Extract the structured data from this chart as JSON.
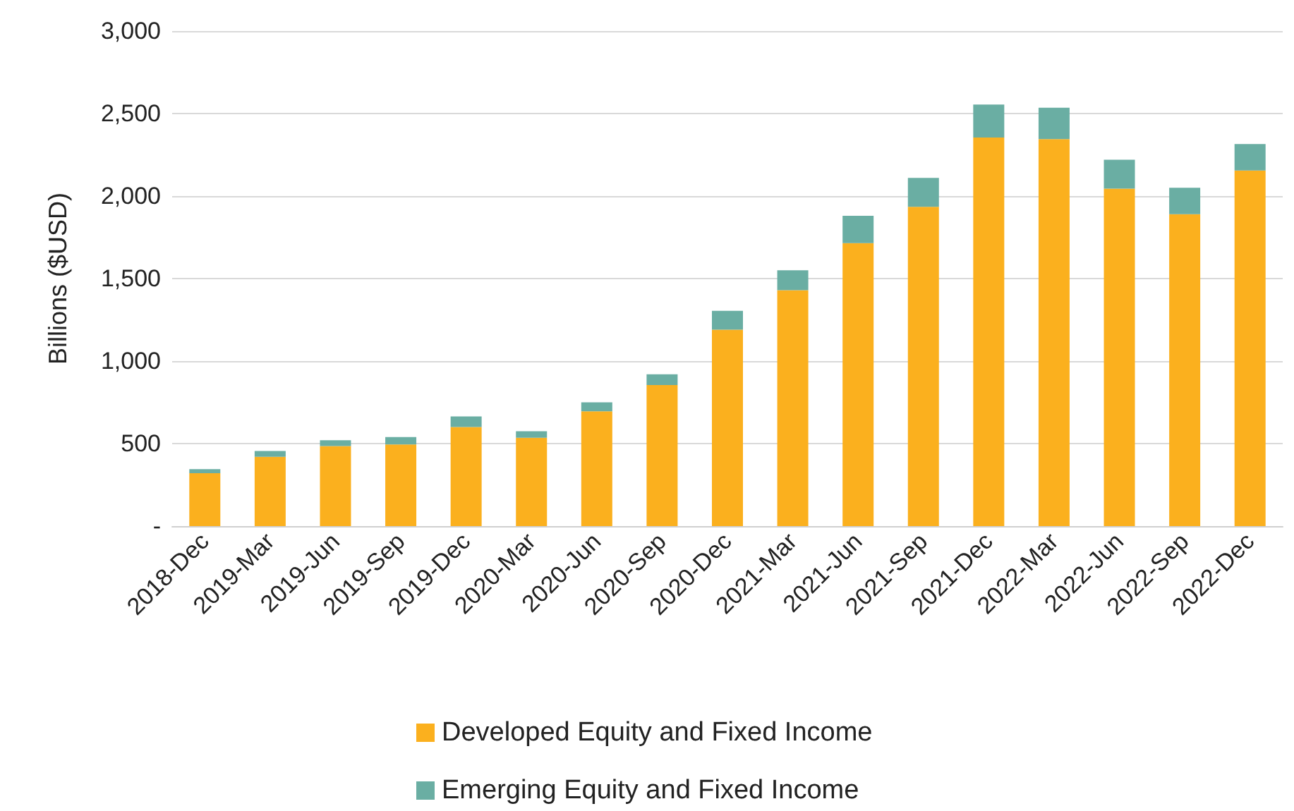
{
  "chart_data": {
    "type": "bar",
    "ylabel": "Billions ($USD)",
    "stacked": true,
    "grid": "y",
    "legend": "bottom",
    "categories": [
      "2018-Dec",
      "2019-Mar",
      "2019-Jun",
      "2019-Sep",
      "2019-Dec",
      "2020-Mar",
      "2020-Jun",
      "2020-Sep",
      "2020-Dec",
      "2021-Mar",
      "2021-Jun",
      "2021-Sep",
      "2021-Dec",
      "2022-Mar",
      "2022-Jun",
      "2022-Sep",
      "2022-Dec"
    ],
    "series": [
      {
        "name": "Developed Equity and Fixed Income",
        "color": "#fbb01e",
        "values": [
          320,
          420,
          485,
          495,
          600,
          535,
          695,
          855,
          1190,
          1430,
          1715,
          1935,
          2355,
          2345,
          2045,
          1890,
          2155
        ]
      },
      {
        "name": "Emerging Equity and Fixed Income",
        "color": "#6aaea3",
        "values": [
          25,
          35,
          35,
          45,
          65,
          40,
          55,
          65,
          115,
          120,
          165,
          175,
          200,
          190,
          175,
          160,
          160
        ]
      }
    ],
    "ylim": [
      0,
      3000
    ],
    "yticks": [
      {
        "value": 0,
        "label": "-"
      },
      {
        "value": 500,
        "label": "500"
      },
      {
        "value": 1000,
        "label": "1,000"
      },
      {
        "value": 1500,
        "label": "1,500"
      },
      {
        "value": 2000,
        "label": "2,000"
      },
      {
        "value": 2500,
        "label": "2,500"
      },
      {
        "value": 3000,
        "label": "3,000"
      }
    ]
  }
}
